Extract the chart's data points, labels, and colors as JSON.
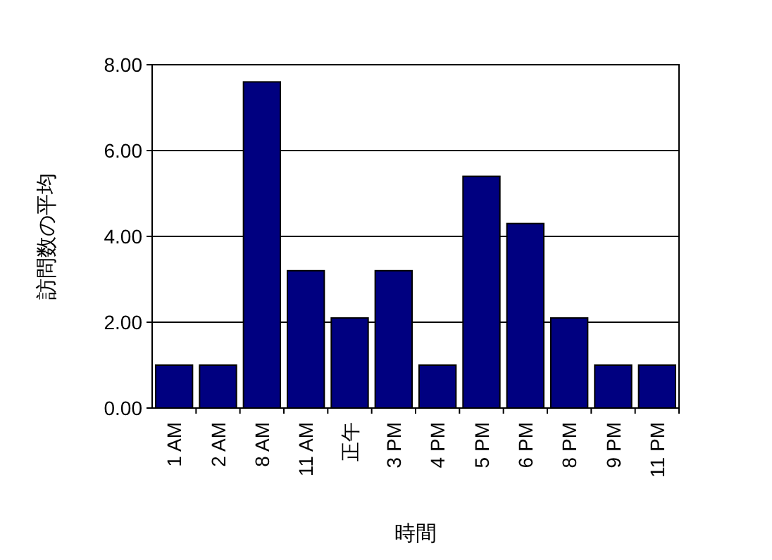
{
  "chart_data": {
    "type": "bar",
    "xlabel": "時間",
    "ylabel": "訪問数の平均",
    "categories": [
      "1 AM",
      "2 AM",
      "8 AM",
      "11 AM",
      "正午",
      "3 PM",
      "4 PM",
      "5 PM",
      "6 PM",
      "8 PM",
      "9 PM",
      "11 PM"
    ],
    "values": [
      1,
      1,
      7.6,
      3.2,
      2.1,
      3.2,
      1,
      5.4,
      4.3,
      2.1,
      1,
      1
    ],
    "color": "#000080",
    "ylim": [
      0,
      8
    ],
    "yticks": [
      {
        "value": 0,
        "label": "0.00"
      },
      {
        "value": 2,
        "label": "2.00"
      },
      {
        "value": 4,
        "label": "4.00"
      },
      {
        "value": 6,
        "label": "6.00"
      },
      {
        "value": 8,
        "label": "8.00"
      }
    ],
    "grid": "y"
  }
}
